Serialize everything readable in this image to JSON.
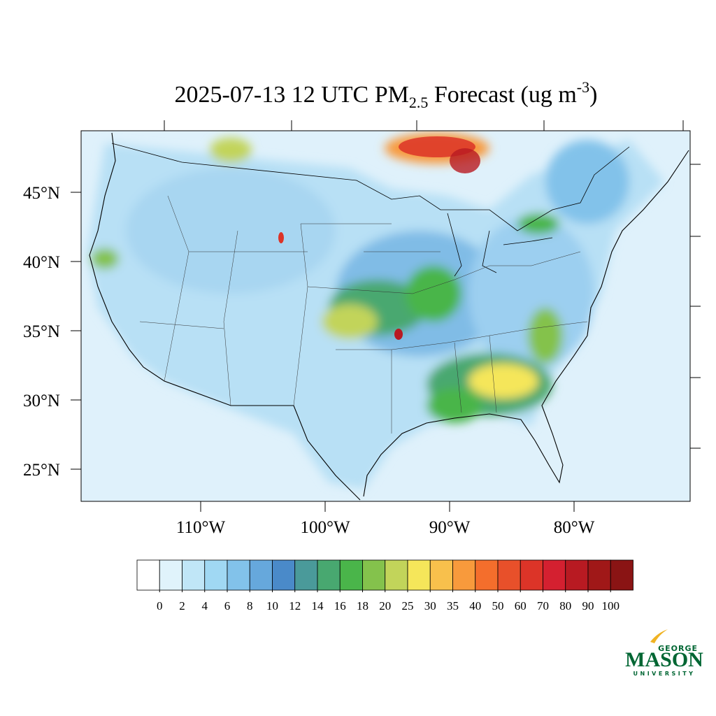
{
  "title": {
    "text": "2025-07-13 12 UTC PM",
    "subscript": "2.5",
    "middle": " Forecast (ug m",
    "superscript": "-3",
    "end": ")"
  },
  "map": {
    "lat_ticks": [
      {
        "value": 45,
        "label": "45°N"
      },
      {
        "value": 40,
        "label": "40°N"
      },
      {
        "value": 35,
        "label": "35°N"
      },
      {
        "value": 30,
        "label": "30°N"
      },
      {
        "value": 25,
        "label": "25°N"
      }
    ],
    "lon_ticks": [
      {
        "value": -110,
        "label": "110°W"
      },
      {
        "value": -100,
        "label": "100°W"
      },
      {
        "value": -90,
        "label": "90°W"
      },
      {
        "value": -80,
        "label": "80°W"
      }
    ]
  },
  "colorbar": {
    "levels": [
      0,
      2,
      4,
      6,
      8,
      10,
      12,
      14,
      16,
      18,
      20,
      25,
      30,
      35,
      40,
      50,
      60,
      70,
      80,
      90,
      100
    ],
    "colors": [
      "#ffffff",
      "#e0f3fb",
      "#c0e6f7",
      "#a0d8f3",
      "#82c2ea",
      "#66a8dc",
      "#4a8ac9",
      "#4a9a9a",
      "#48a870",
      "#4ab54a",
      "#84c24c",
      "#c2d45a",
      "#f5e65a",
      "#f8c04c",
      "#f89a3c",
      "#f46e2c",
      "#e8502a",
      "#dc3428",
      "#d42030",
      "#b81a22",
      "#a01818",
      "#8a1414"
    ]
  },
  "logo": {
    "top": "GEORGE",
    "main": "MASON",
    "bottom": "UNIVERSITY"
  }
}
